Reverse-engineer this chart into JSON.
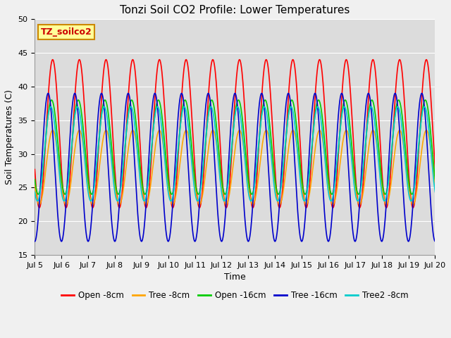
{
  "title": "Tonzi Soil CO2 Profile: Lower Temperatures",
  "xlabel": "Time",
  "ylabel": "Soil Temperatures (C)",
  "ylim": [
    15,
    50
  ],
  "yticks": [
    15,
    20,
    25,
    30,
    35,
    40,
    45,
    50
  ],
  "plot_bg_color": "#dcdcdc",
  "fig_bg_color": "#f0f0f0",
  "grid_color": "#ffffff",
  "series": [
    {
      "label": "Open -8cm",
      "color": "#ff0000"
    },
    {
      "label": "Tree -8cm",
      "color": "#ffa500"
    },
    {
      "label": "Open -16cm",
      "color": "#00cc00"
    },
    {
      "label": "Tree -16cm",
      "color": "#0000cc"
    },
    {
      "label": "Tree2 -8cm",
      "color": "#00cccc"
    }
  ],
  "annotation_text": "TZ_soilco2",
  "annotation_bg": "#ffff99",
  "annotation_border": "#cc8800",
  "n_points": 1440,
  "x_start": 5.0,
  "x_end": 20.0,
  "xtick_labels": [
    "Jul 5",
    "Jul 6",
    "Jul 7",
    "Jul 8",
    "Jul 9",
    "Jul 10",
    "Jul 11",
    "Jul 12",
    "Jul 13",
    "Jul 14",
    "Jul 15",
    "Jul 16",
    "Jul 17",
    "Jul 18",
    "Jul 19",
    "Jul 20"
  ],
  "xtick_positions": [
    5,
    6,
    7,
    8,
    9,
    10,
    11,
    12,
    13,
    14,
    15,
    16,
    17,
    18,
    19,
    20
  ],
  "title_fontsize": 11,
  "label_fontsize": 9,
  "tick_fontsize": 8,
  "legend_fontsize": 8.5
}
